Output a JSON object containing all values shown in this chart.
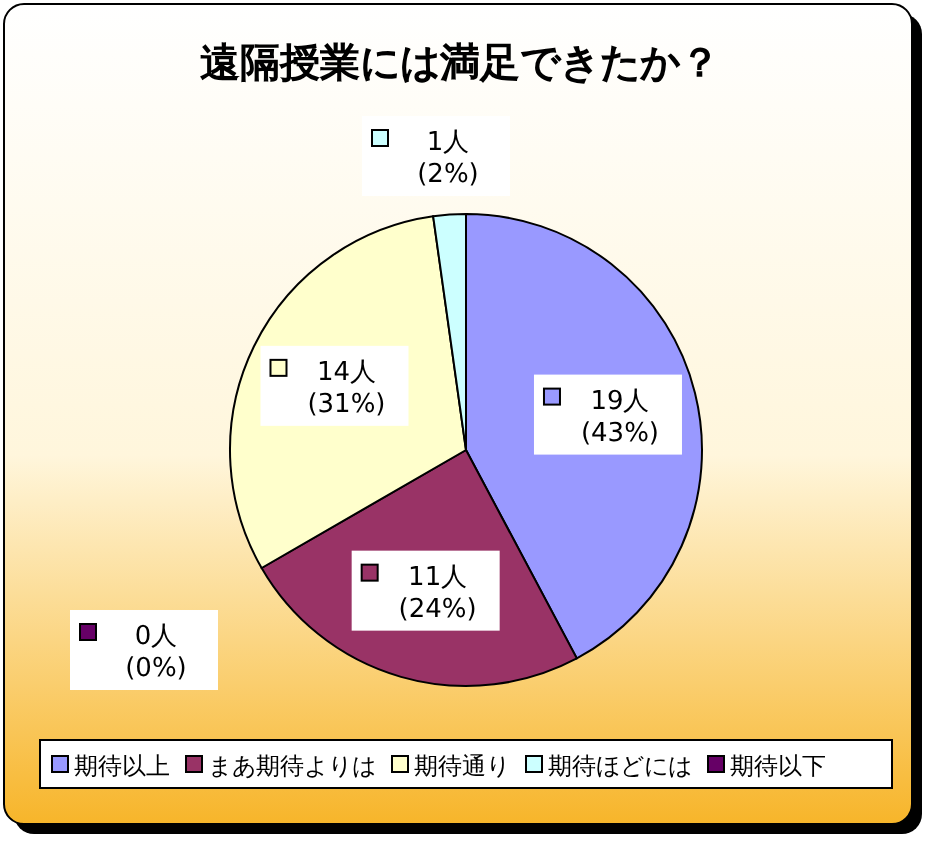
{
  "chart_data": {
    "type": "pie",
    "title": "遠隔授業には満足できたか？",
    "categories": [
      "期待以上",
      "まあ期待よりは",
      "期待通り",
      "期待ほどには",
      "期待以下"
    ],
    "values": [
      19,
      11,
      14,
      1,
      0
    ],
    "colors": [
      "#9999ff",
      "#993366",
      "#ffffcc",
      "#ccffff",
      "#660066"
    ],
    "value_labels": [
      "19人\n(43%)",
      "11人\n(24%)",
      "14人\n(31%)",
      "1人\n(2%)",
      "0人\n(0%)"
    ],
    "legend": "bottom"
  }
}
